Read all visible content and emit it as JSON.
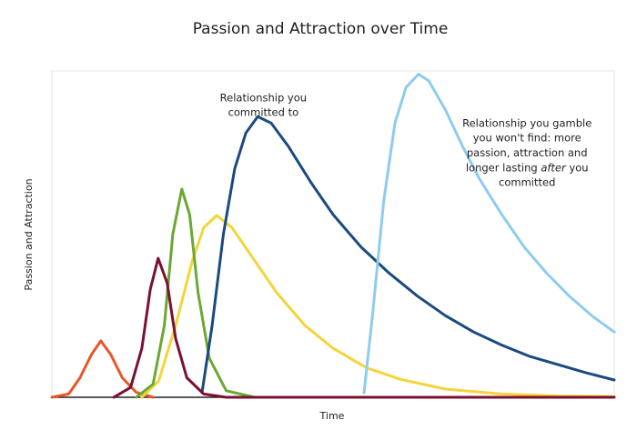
{
  "chart_data": {
    "type": "line",
    "title": "Passion and Attraction over Time",
    "x_label": "Time",
    "y_label": "Passion and Attraction",
    "xlim": [
      0,
      100
    ],
    "ylim": [
      0,
      100
    ],
    "annotations": [
      {
        "x": 37.6,
        "y": 91.8,
        "lines": [
          "Relationship you",
          "committed to"
        ]
      },
      {
        "x": 84.5,
        "y": 84,
        "lines": [
          "Relationship you gamble",
          "you won't find: more",
          "passion, attraction and",
          [
            "longer lasting ",
            "after",
            " you"
          ],
          "committed"
        ]
      }
    ],
    "series": [
      {
        "color": "#e8562a",
        "x": [
          0,
          3,
          5,
          7,
          8.7,
          10.5,
          12.5,
          15,
          18
        ],
        "values": [
          0,
          1,
          6,
          13,
          17.3,
          13,
          6,
          1.5,
          0
        ]
      },
      {
        "color": "#f5d33b",
        "x": [
          16,
          19,
          22,
          25,
          27,
          29.3,
          32,
          36,
          40,
          45,
          50,
          56,
          62,
          70,
          80,
          90,
          100
        ],
        "values": [
          0,
          5,
          22,
          42,
          52,
          55.7,
          52,
          42,
          32,
          22,
          15,
          9,
          5.5,
          2.5,
          1,
          0.4,
          0.2
        ]
      },
      {
        "color": "#6aa832",
        "x": [
          15,
          18,
          20,
          21.5,
          23.1,
          24.5,
          26,
          28,
          31,
          36
        ],
        "values": [
          0,
          4,
          22,
          50,
          63.8,
          56,
          32,
          12,
          2,
          0
        ]
      },
      {
        "color": "#1a4a80",
        "x": [
          26.7,
          28.5,
          30.5,
          32.5,
          34.5,
          36.6,
          39,
          42,
          46,
          50,
          55,
          60,
          65,
          70,
          75,
          80,
          85,
          90,
          95,
          100
        ],
        "values": [
          1.4,
          22,
          50,
          70,
          81,
          86,
          84,
          77,
          66,
          56,
          46,
          38,
          31,
          25,
          20,
          16,
          12.5,
          10,
          7.5,
          5.3
        ]
      },
      {
        "color": "#8ecbef",
        "x": [
          55.5,
          57,
          59,
          61,
          63,
          65.2,
          67,
          70,
          73,
          76,
          80,
          84,
          88,
          92,
          96,
          100
        ],
        "values": [
          1.4,
          25,
          60,
          84,
          95,
          99,
          97,
          88,
          77,
          67,
          56,
          46,
          38,
          31,
          25,
          20
        ]
      },
      {
        "color": "#7b1030",
        "x": [
          11,
          14,
          16,
          17.5,
          18.9,
          20.5,
          22,
          24,
          27,
          31,
          100
        ],
        "values": [
          0,
          3,
          15,
          33,
          42.6,
          35,
          18,
          6,
          1,
          0,
          0
        ]
      }
    ]
  }
}
